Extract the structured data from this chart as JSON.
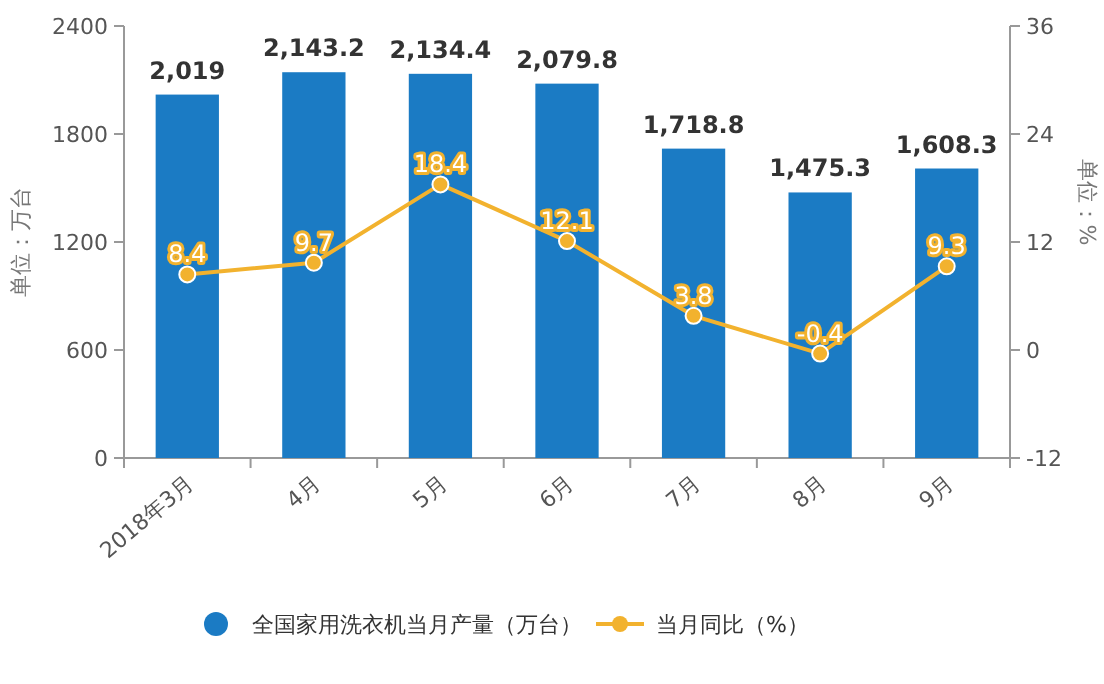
{
  "chart_data": {
    "type": "bar",
    "categories": [
      "2018年3月",
      "4月",
      "5月",
      "6月",
      "7月",
      "8月",
      "9月"
    ],
    "series": [
      {
        "name": "全国家用洗衣机当月产量（万台）",
        "color": "#1b7bc4",
        "values": [
          2019,
          2143.2,
          2134.4,
          2079.8,
          1718.8,
          1475.3,
          1608.3
        ],
        "value_labels": [
          "2,019",
          "2,143.2",
          "2,134.4",
          "2,079.8",
          "1,718.8",
          "1,475.3",
          "1,608.3"
        ]
      },
      {
        "name": "当月同比（%）",
        "type": "line",
        "axis": "y2",
        "color": "#f2b22e",
        "marker": "circle",
        "values": [
          8.4,
          9.7,
          18.4,
          12.1,
          3.8,
          -0.4,
          9.3
        ]
      }
    ],
    "ylabel": "单位：万台",
    "y2label": "单位：%",
    "ylim": [
      0,
      2400
    ],
    "yticks": [
      0,
      600,
      1200,
      1800,
      2400
    ],
    "y2lim": [
      -12,
      36
    ],
    "y2ticks": [
      -12,
      0,
      12,
      24,
      36
    ],
    "data_labels": true,
    "legend": "bottom",
    "grid": false
  }
}
